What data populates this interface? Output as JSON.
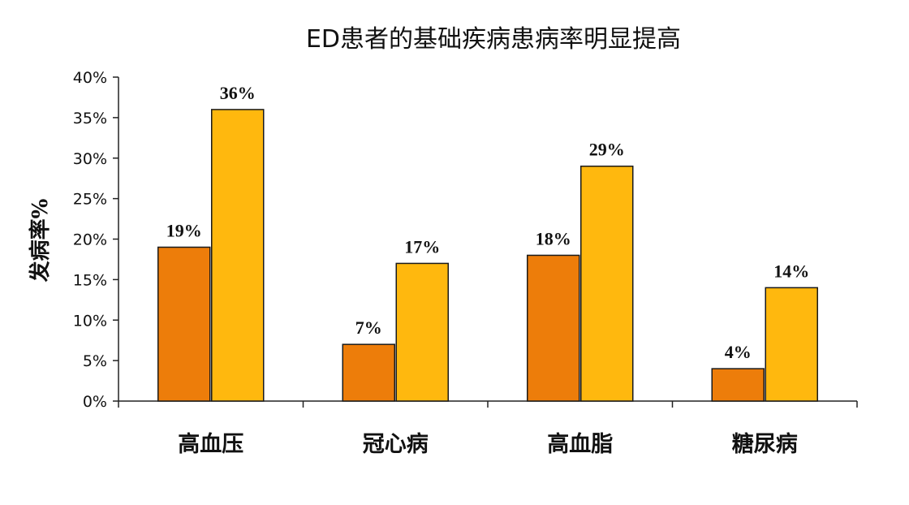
{
  "chart_data": {
    "type": "bar",
    "title": "ED患者的基础疾病患病率明显提高",
    "ylabel": "发病率%",
    "xlabel": "",
    "categories": [
      "高血压",
      "冠心病",
      "高血脂",
      "糖尿病"
    ],
    "series": [
      {
        "values": [
          19,
          7,
          18,
          4
        ],
        "labels": [
          "19%",
          "7%",
          "18%",
          "4%"
        ],
        "color": "#ED7D0A"
      },
      {
        "values": [
          36,
          17,
          29,
          14
        ],
        "labels": [
          "36%",
          "17%",
          "29%",
          "14%"
        ],
        "color": "#FFB80E"
      }
    ],
    "ylim": [
      0,
      40
    ],
    "yticks": [
      0,
      5,
      10,
      15,
      20,
      25,
      30,
      35,
      40
    ],
    "ytick_labels": [
      "0%",
      "5%",
      "10%",
      "15%",
      "20%",
      "25%",
      "30%",
      "35%",
      "40%"
    ],
    "grid": false,
    "legend": "none"
  }
}
